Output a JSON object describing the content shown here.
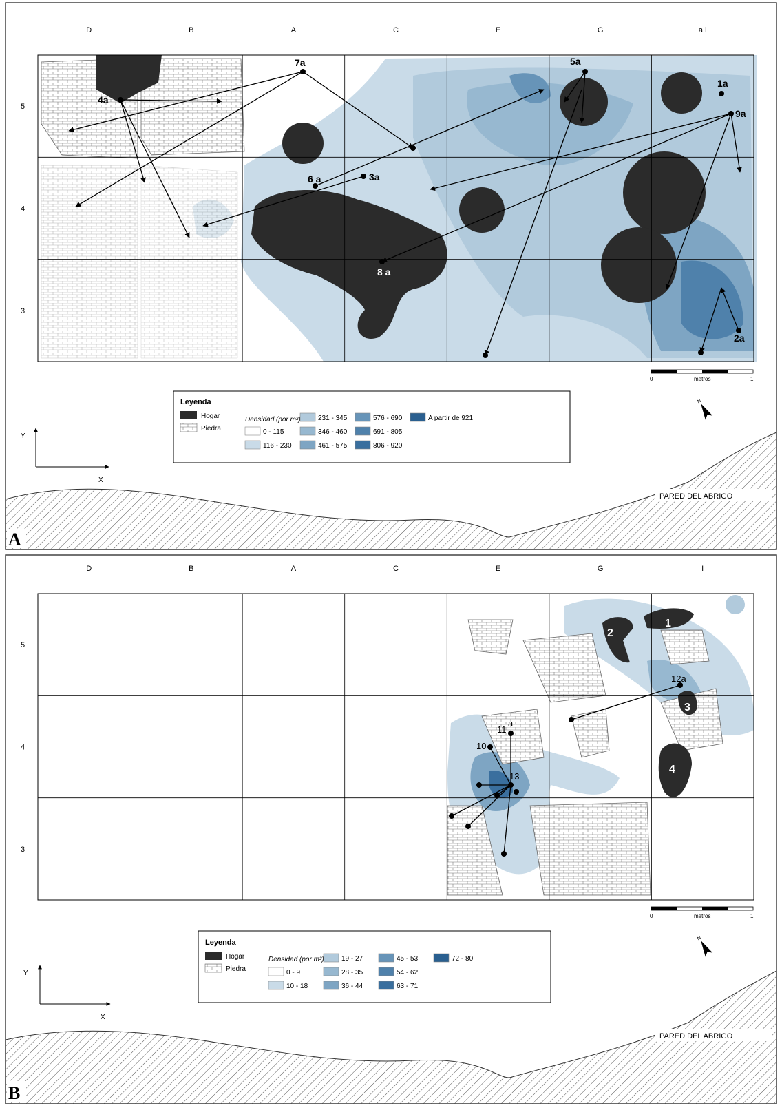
{
  "columns_A": [
    "D",
    "B",
    "A",
    "C",
    "E",
    "G",
    "a l"
  ],
  "columns_B": [
    "D",
    "B",
    "A",
    "C",
    "E",
    "G",
    "I"
  ],
  "rows": [
    "5",
    "4",
    "3"
  ],
  "panel_A": {
    "letter": "A",
    "wall_label": "PARED DEL ABRIGO",
    "legend": {
      "title": "Leyenda",
      "hogar": "Hogar",
      "piedra": "Piedra",
      "density_label": "Densidad (por m²)",
      "classes": [
        "0 - 115",
        "116 - 230",
        "231 - 345",
        "346 - 460",
        "461 - 575",
        "576 - 690",
        "691 - 805",
        "806 - 920",
        "A partir de 921"
      ]
    },
    "refit_labels": [
      "7a",
      "5a",
      "1a",
      "9a",
      "4a",
      "6 a",
      "3a",
      "8 a",
      "2a"
    ]
  },
  "panel_B": {
    "letter": "B",
    "wall_label": "PARED DEL ABRIGO",
    "legend": {
      "title": "Leyenda",
      "hogar": "Hogar",
      "piedra": "Piedra",
      "density_label": "Densidad (por m²)",
      "classes": [
        "0 - 9",
        "10 - 18",
        "19 - 27",
        "28 - 35",
        "36 - 44",
        "45 - 53",
        "54 - 62",
        "63 - 71",
        "72 - 80"
      ]
    },
    "hearth_labels": [
      "1",
      "2",
      "3",
      "4"
    ],
    "refit_labels": [
      "12a",
      "11",
      "10",
      "13",
      "a"
    ]
  },
  "scale": {
    "label": "metros",
    "min": "0",
    "max": "1"
  },
  "axes": {
    "x": "X",
    "y": "Y"
  },
  "palette": [
    "#ffffff",
    "#c9dbe8",
    "#b1cadc",
    "#97b8d0",
    "#7ea5c3",
    "#6794b8",
    "#4f81ab",
    "#3a6f9e",
    "#2a5f8f"
  ],
  "hearth_color": "#2b2b2b"
}
